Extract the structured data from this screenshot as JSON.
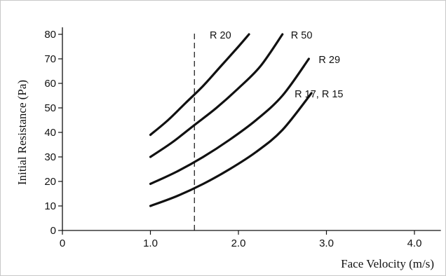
{
  "chart_data": {
    "type": "line",
    "title": "",
    "xlabel": "Face Velocity  (m/s)",
    "ylabel": "Initial Resistance  (Pa)",
    "xlim": [
      0,
      4.3
    ],
    "ylim": [
      0,
      85
    ],
    "xticks": [
      0,
      1.0,
      2.0,
      3.0,
      4.0
    ],
    "xtick_labels": [
      "0",
      "1.0",
      "2.0",
      "3.0",
      "4.0"
    ],
    "yticks": [
      0,
      10,
      20,
      30,
      40,
      50,
      60,
      70,
      80
    ],
    "ytick_labels": [
      "0",
      "10",
      "20",
      "30",
      "40",
      "50",
      "60",
      "70",
      "80"
    ],
    "grid": false,
    "reference_line": {
      "x": 1.5,
      "style": "dashed"
    },
    "series": [
      {
        "name": "R 20",
        "x": [
          1.0,
          1.2,
          1.4,
          1.6,
          1.8,
          2.0,
          2.12
        ],
        "y": [
          39,
          45,
          52,
          59,
          67,
          75,
          80
        ]
      },
      {
        "name": "R 50",
        "x": [
          1.0,
          1.25,
          1.5,
          1.75,
          2.0,
          2.25,
          2.5
        ],
        "y": [
          30,
          36,
          43,
          50,
          58,
          67,
          80
        ]
      },
      {
        "name": "R 29",
        "x": [
          1.0,
          1.3,
          1.6,
          1.9,
          2.2,
          2.5,
          2.8
        ],
        "y": [
          19,
          24,
          30,
          37,
          45,
          55,
          70
        ]
      },
      {
        "name": "R 17, R 15",
        "x": [
          1.0,
          1.3,
          1.6,
          1.9,
          2.2,
          2.5,
          2.83
        ],
        "y": [
          10,
          14,
          19,
          25,
          32,
          41,
          56
        ]
      }
    ]
  }
}
